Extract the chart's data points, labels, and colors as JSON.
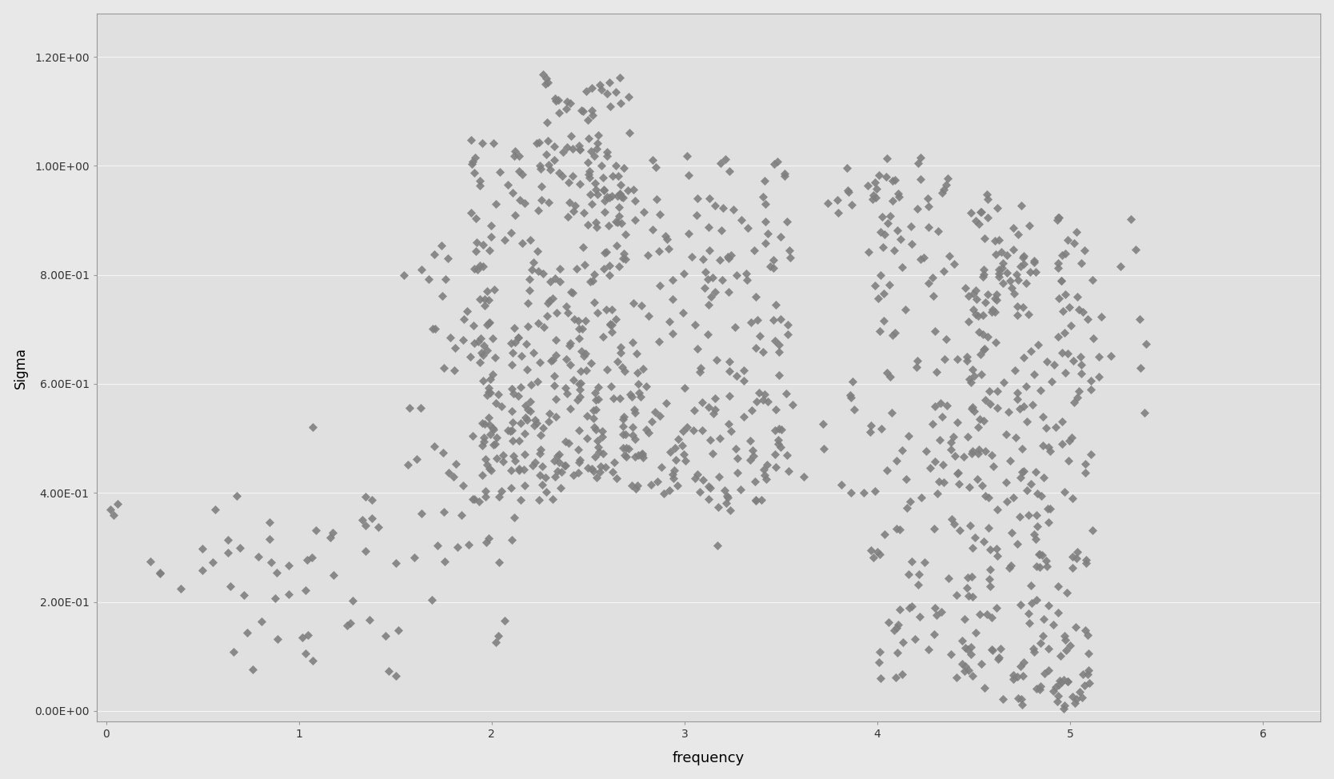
{
  "title": "",
  "xlabel": "frequency",
  "ylabel": "Sigma",
  "xlim": [
    -0.05,
    6.3
  ],
  "ylim": [
    -0.02,
    1.28
  ],
  "yticks": [
    0.0,
    0.2,
    0.4,
    0.6,
    0.8,
    1.0,
    1.2
  ],
  "ytick_labels": [
    "0.00E+00",
    "2.00E-01",
    "4.00E-01",
    "6.00E-01",
    "8.00E-01",
    "1.00E+00",
    "1.20E+00"
  ],
  "xticks": [
    0,
    1,
    2,
    3,
    4,
    5,
    6
  ],
  "marker_color": "#808080",
  "background_color": "#e8e8e8",
  "plot_bg_color": "#e0e0e0",
  "grid_color": "#f5f5f5",
  "seed": 42
}
